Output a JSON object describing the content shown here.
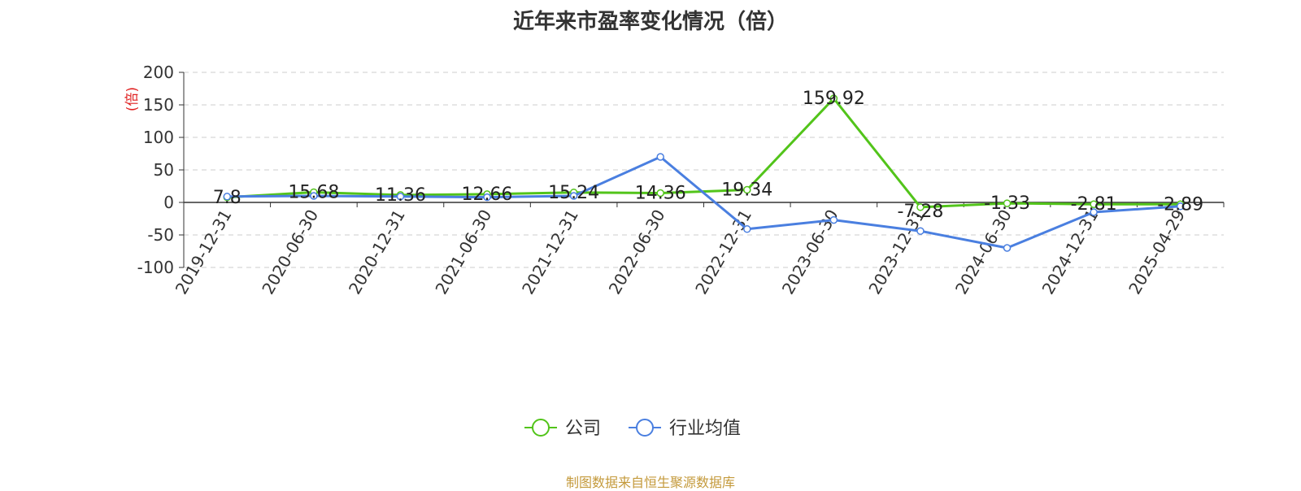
{
  "header": {
    "title": "近年来市盈率变化情况（倍）"
  },
  "footer": {
    "source": "制图数据来自恒生聚源数据库"
  },
  "colors": {
    "company": "#52c41a",
    "industry": "#4a7fe0",
    "unit": "#e02020",
    "source": "#c49a3c"
  },
  "chart_data": {
    "type": "line",
    "title": "近年来市盈率变化情况（倍）",
    "ylabel": "(倍)",
    "ylim": [
      -100,
      200
    ],
    "yticks": [
      200,
      150,
      100,
      50,
      0,
      -50,
      -100
    ],
    "grid": true,
    "legend_position": "bottom-center",
    "categories": [
      "2019-12-31",
      "2020-06-30",
      "2020-12-31",
      "2021-06-30",
      "2021-12-31",
      "2022-06-30",
      "2022-12-31",
      "2023-06-30",
      "2023-12-31",
      "2024-06-30",
      "2024-12-31",
      "2025-04-29"
    ],
    "series": [
      {
        "name": "公司",
        "color": "#52c41a",
        "values": [
          7.8,
          15.68,
          11.36,
          12.66,
          15.24,
          14.36,
          19.34,
          159.92,
          -7.28,
          -1.33,
          -2.81,
          -2.89
        ],
        "labels": [
          "7.8",
          "15.68",
          "11.36",
          "12.66",
          "15.24",
          "14.36",
          "19.34",
          "159.92",
          "-7.28",
          "-1.33",
          "-2.81",
          "-2.89"
        ]
      },
      {
        "name": "行业均值",
        "color": "#4a7fe0",
        "values": [
          9,
          10,
          9,
          8,
          10,
          70,
          -41,
          -27,
          -44,
          -70,
          -15,
          -6
        ]
      }
    ]
  }
}
